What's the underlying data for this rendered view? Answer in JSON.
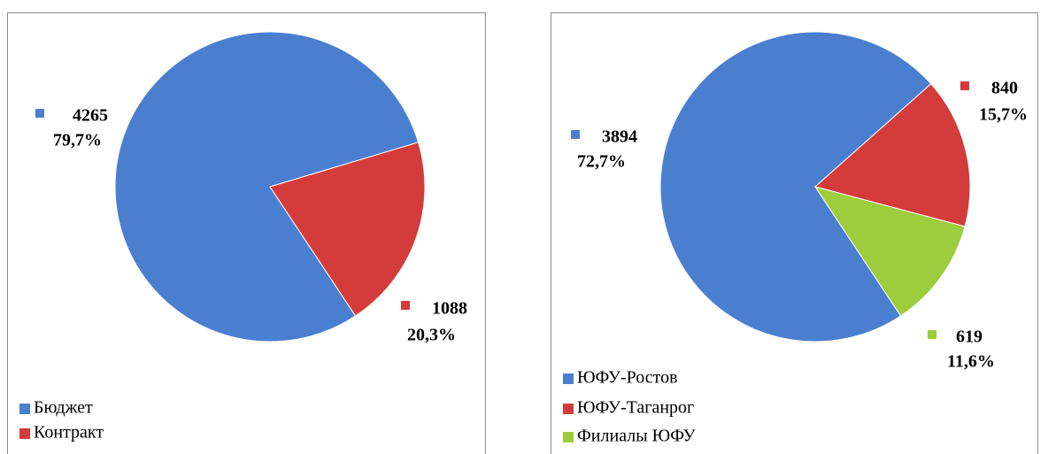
{
  "chart_data": [
    {
      "type": "pie",
      "categories": [
        "Бюджет",
        "Контракт"
      ],
      "values": [
        4265,
        1088
      ],
      "percents": [
        79.7,
        20.3
      ],
      "percent_labels": [
        "79,7%",
        "20,3%"
      ],
      "colors": [
        "#4a7fd0",
        "#d43b3b"
      ],
      "start_angle": 146.5,
      "legend": "bottom-left"
    },
    {
      "type": "pie",
      "categories": [
        "ЮФУ-Ростов",
        "ЮФУ-Таганрог",
        "Филиалы ЮФУ"
      ],
      "values": [
        3894,
        840,
        619
      ],
      "percents": [
        72.7,
        15.7,
        11.6
      ],
      "percent_labels": [
        "72,7%",
        "15,7%",
        "11,6%"
      ],
      "colors": [
        "#4a7fd0",
        "#d43b3b",
        "#9dcc3c"
      ],
      "start_angle": 146.5,
      "legend": "bottom-left"
    }
  ]
}
